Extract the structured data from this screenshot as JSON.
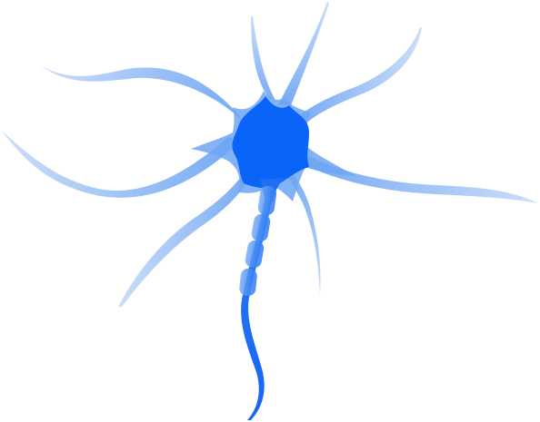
{
  "image": {
    "subject": "neuron",
    "colors": {
      "soma": "#0a64f7",
      "axon": "#2a79f5",
      "dendrite_light": "#9cc3f6",
      "dendrite_mid": "#6fa6f3",
      "myelin": "#4d8ff4",
      "background": "#ffffff"
    }
  }
}
